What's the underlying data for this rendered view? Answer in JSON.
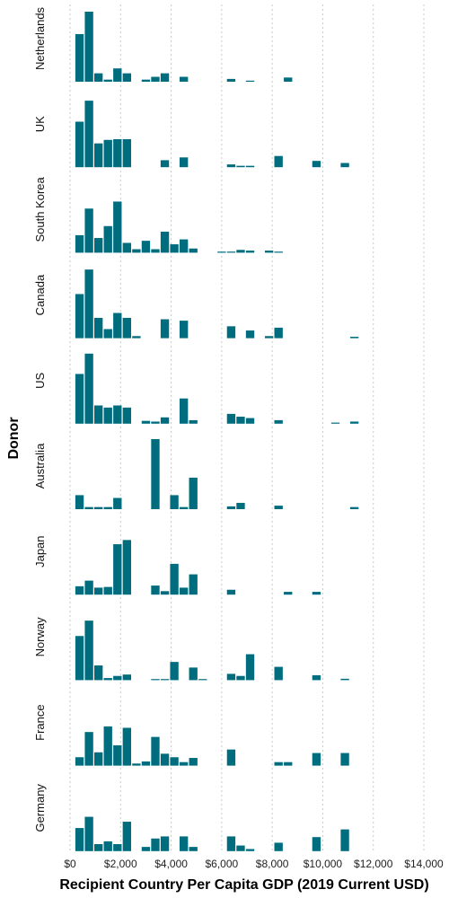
{
  "chart_data": {
    "type": "bar",
    "subtype": "histogram-facets",
    "xlabel": "Recipient Country Per Capita GDP (2019 Current USD)",
    "ylabel": "Donor",
    "x_ticks": [
      {
        "value": 0,
        "label": "$0"
      },
      {
        "value": 2000,
        "label": "$2,000"
      },
      {
        "value": 4000,
        "label": "$4,000"
      },
      {
        "value": 6000,
        "label": "$6,000"
      },
      {
        "value": 8000,
        "label": "$8,000"
      },
      {
        "value": 10000,
        "label": "$10,000"
      },
      {
        "value": 12000,
        "label": "$12,000"
      },
      {
        "value": 14000,
        "label": "$14,000"
      }
    ],
    "xlim": [
      0,
      14000
    ],
    "bin_width": 375,
    "bin_starts": [
      188,
      563,
      938,
      1313,
      1688,
      2063,
      2438,
      2813,
      3188,
      3563,
      3938,
      4313,
      4688,
      5063,
      5438,
      5813,
      6188,
      6563,
      6938,
      7313,
      7688,
      8063,
      8438,
      8813,
      9188,
      9563,
      9938,
      10313,
      10688,
      11063
    ],
    "bar_color": "#006d7f",
    "grid": "vertical dotted",
    "facets": [
      {
        "donor": "Netherlands",
        "heights": [
          68,
          100,
          12,
          3,
          19,
          12,
          0,
          3,
          7,
          12,
          0,
          7,
          0,
          0,
          0,
          0,
          4,
          0,
          1,
          0,
          0,
          0,
          6,
          0,
          0,
          0,
          0,
          0,
          0,
          0
        ]
      },
      {
        "donor": "UK",
        "heights": [
          65,
          95,
          34,
          39,
          40,
          40,
          0,
          0,
          0,
          10,
          0,
          14,
          0,
          0,
          0,
          0,
          4,
          2,
          2,
          0,
          0,
          16,
          0,
          0,
          0,
          9,
          0,
          0,
          6,
          0
        ]
      },
      {
        "donor": "South Korea",
        "heights": [
          25,
          63,
          21,
          38,
          73,
          14,
          5,
          17,
          5,
          30,
          12,
          19,
          6,
          0,
          0,
          1,
          1,
          4,
          3,
          0,
          3,
          1,
          0,
          0,
          0,
          0,
          0,
          0,
          0,
          0
        ]
      },
      {
        "donor": "Canada",
        "heights": [
          63,
          98,
          29,
          13,
          36,
          29,
          3,
          0,
          0,
          27,
          0,
          25,
          0,
          0,
          0,
          0,
          17,
          0,
          11,
          0,
          3,
          15,
          0,
          0,
          0,
          0,
          0,
          0,
          0,
          2
        ]
      },
      {
        "donor": "US",
        "heights": [
          71,
          100,
          26,
          23,
          26,
          23,
          0,
          4,
          3,
          9,
          0,
          36,
          5,
          0,
          0,
          0,
          14,
          10,
          8,
          0,
          0,
          5,
          0,
          0,
          0,
          0,
          0,
          1,
          0,
          3
        ]
      },
      {
        "donor": "Australia",
        "heights": [
          20,
          3,
          3,
          3,
          16,
          0,
          0,
          0,
          100,
          0,
          20,
          3,
          45,
          0,
          0,
          0,
          4,
          9,
          0,
          0,
          0,
          5,
          0,
          0,
          0,
          0,
          0,
          0,
          0,
          3
        ]
      },
      {
        "donor": "Japan",
        "heights": [
          12,
          20,
          10,
          11,
          72,
          78,
          0,
          0,
          13,
          5,
          44,
          10,
          29,
          0,
          0,
          0,
          7,
          0,
          0,
          0,
          0,
          0,
          4,
          0,
          0,
          4,
          0,
          0,
          0,
          0
        ]
      },
      {
        "donor": "Norway",
        "heights": [
          63,
          85,
          21,
          3,
          6,
          8,
          0,
          0,
          1,
          1,
          26,
          0,
          18,
          1,
          0,
          0,
          9,
          6,
          37,
          0,
          0,
          19,
          0,
          0,
          0,
          7,
          0,
          0,
          2,
          0
        ]
      },
      {
        "donor": "France",
        "heights": [
          12,
          48,
          19,
          56,
          29,
          54,
          3,
          6,
          41,
          17,
          12,
          5,
          11,
          0,
          0,
          0,
          23,
          0,
          0,
          0,
          0,
          5,
          5,
          0,
          0,
          18,
          0,
          0,
          18,
          0
        ]
      },
      {
        "donor": "Germany",
        "heights": [
          33,
          49,
          10,
          14,
          10,
          42,
          0,
          6,
          18,
          21,
          0,
          21,
          6,
          0,
          0,
          0,
          21,
          8,
          3,
          0,
          0,
          12,
          0,
          0,
          0,
          20,
          0,
          0,
          31,
          0
        ]
      }
    ]
  }
}
